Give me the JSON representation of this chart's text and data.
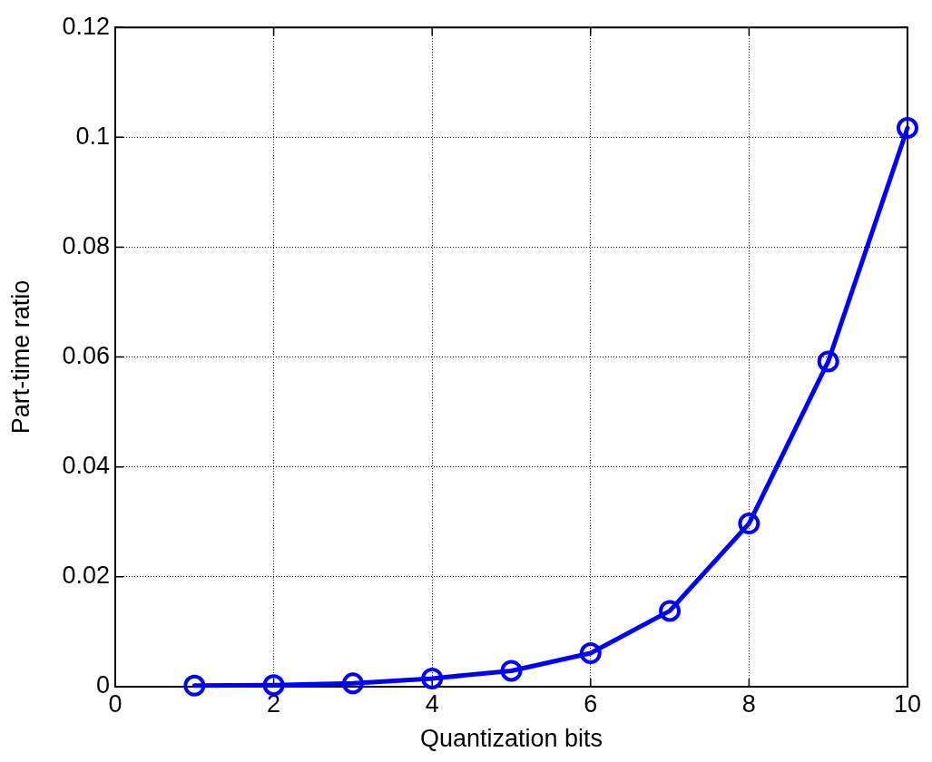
{
  "chart_data": {
    "type": "line",
    "xlabel": "Quantization bits",
    "ylabel": "Part-time ratio",
    "x": [
      1,
      2,
      3,
      4,
      5,
      6,
      7,
      8,
      9,
      10
    ],
    "values": [
      0.0002,
      0.0003,
      0.0006,
      0.0015,
      0.0029,
      0.0061,
      0.0138,
      0.0297,
      0.0592,
      0.1017
    ],
    "color": "#0000ff",
    "xlim": [
      0,
      10
    ],
    "ylim": [
      0,
      0.12
    ],
    "xticks": [
      0,
      2,
      4,
      6,
      8,
      10
    ],
    "yticks": [
      0,
      0.02,
      0.04,
      0.06,
      0.08,
      0.1,
      0.12
    ],
    "grid": true,
    "marker": "circle",
    "line_style": "solid"
  }
}
